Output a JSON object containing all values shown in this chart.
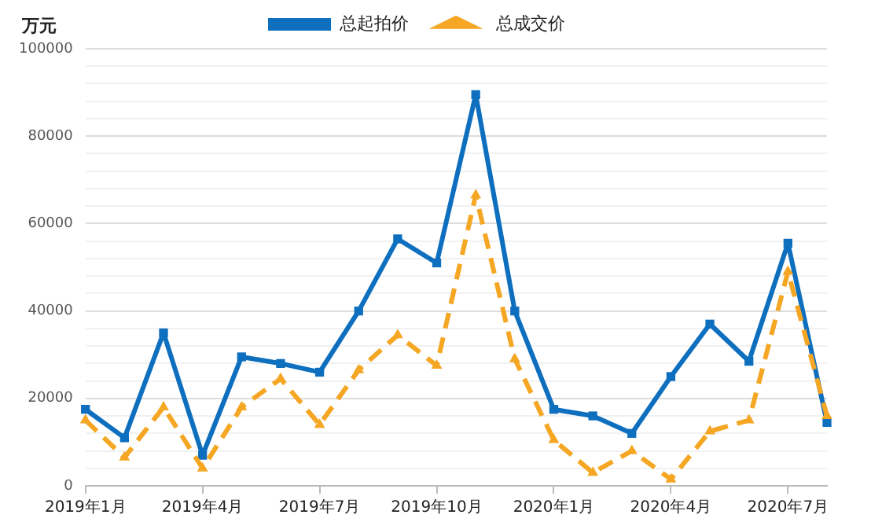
{
  "chart_data": {
    "type": "line",
    "ylabel": "万元",
    "legend": "top",
    "categories": [
      "2019年1月",
      null,
      null,
      "2019年4月",
      null,
      null,
      "2019年7月",
      null,
      null,
      "2019年10月",
      null,
      null,
      "2020年1月",
      null,
      null,
      "2020年4月",
      null,
      null,
      "2020年7月",
      null
    ],
    "series": [
      {
        "name": "总起拍价",
        "color": "#0f6fbf",
        "marker": "square",
        "line_style": "solid",
        "values": [
          17500,
          11000,
          35000,
          7000,
          29500,
          28000,
          26000,
          40000,
          56500,
          51000,
          89500,
          40000,
          17500,
          16000,
          12000,
          25000,
          37000,
          28500,
          55500,
          14500
        ]
      },
      {
        "name": "总成交价",
        "color": "#f5a623",
        "marker": "triangle",
        "line_style": "dashed",
        "values": [
          15000,
          6500,
          18000,
          4000,
          18000,
          24500,
          14000,
          26500,
          34500,
          27500,
          66500,
          29000,
          10500,
          3000,
          8000,
          1500,
          12500,
          15000,
          49000,
          16000
        ]
      }
    ],
    "ylim": [
      0,
      100000
    ],
    "yticks": [
      0,
      {
        "value": 4000,
        "label": null
      },
      {
        "value": 8000,
        "label": null
      },
      {
        "value": 12000,
        "label": null
      },
      {
        "value": 16000,
        "label": null
      },
      20000,
      {
        "value": 24000,
        "label": null
      },
      {
        "value": 28000,
        "label": null
      },
      {
        "value": 32000,
        "label": null
      },
      {
        "value": 36000,
        "label": null
      },
      40000,
      {
        "value": 44000,
        "label": null
      },
      {
        "value": 48000,
        "label": null
      },
      {
        "value": 52000,
        "label": null
      },
      {
        "value": 56000,
        "label": null
      },
      60000,
      {
        "value": 64000,
        "label": null
      },
      {
        "value": 68000,
        "label": null
      },
      {
        "value": 72000,
        "label": null
      },
      {
        "value": 76000,
        "label": null
      },
      80000,
      {
        "value": 84000,
        "label": null
      },
      {
        "value": 88000,
        "label": null
      },
      {
        "value": 92000,
        "label": null
      },
      {
        "value": 96000,
        "label": null
      },
      100000
    ],
    "grid": "y"
  }
}
